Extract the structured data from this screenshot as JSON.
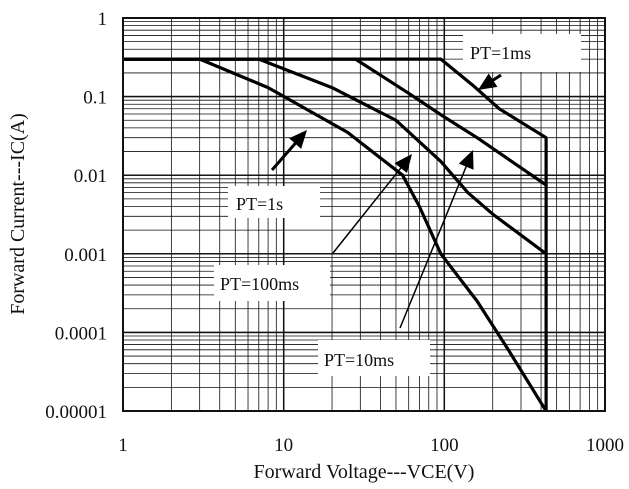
{
  "chart_data": {
    "type": "line",
    "title": "",
    "xlabel": "Forward Voltage---VCE(V)",
    "ylabel": "Forward Current---IC(A)",
    "x_scale": "log",
    "y_scale": "log",
    "xlim": [
      1,
      1000
    ],
    "ylim": [
      1e-05,
      1
    ],
    "grid": true,
    "x_ticks": [
      "1",
      "10",
      "100",
      "1000"
    ],
    "y_ticks": [
      "1",
      "0.1",
      "0.01",
      "0.001",
      "0.0001",
      "0.00001"
    ],
    "series": [
      {
        "name": "PT=1ms",
        "x": [
          1,
          95,
          150,
          220,
          430,
          430
        ],
        "y": [
          0.3,
          0.3,
          0.14,
          0.07,
          0.03,
          1e-05
        ]
      },
      {
        "name": "PT=10ms",
        "x": [
          1,
          28,
          60,
          100,
          160,
          430
        ],
        "y": [
          0.3,
          0.3,
          0.11,
          0.055,
          0.03,
          0.0075
        ]
      },
      {
        "name": "PT=100ms",
        "x": [
          1,
          7,
          20,
          50,
          95,
          140,
          200,
          430
        ],
        "y": [
          0.3,
          0.3,
          0.13,
          0.05,
          0.015,
          0.006,
          0.0032,
          0.001
        ]
      },
      {
        "name": "PT=1s",
        "x": [
          1,
          3,
          8,
          25,
          55,
          70,
          95,
          160,
          250,
          430
        ],
        "y": [
          0.3,
          0.3,
          0.13,
          0.035,
          0.01,
          0.004,
          0.001,
          0.00025,
          6e-05,
          1e-05
        ]
      }
    ],
    "annotations": [
      {
        "text": "PT=1ms"
      },
      {
        "text": "PT=1s"
      },
      {
        "text": "PT=100ms"
      },
      {
        "text": "PT=10ms"
      }
    ]
  }
}
